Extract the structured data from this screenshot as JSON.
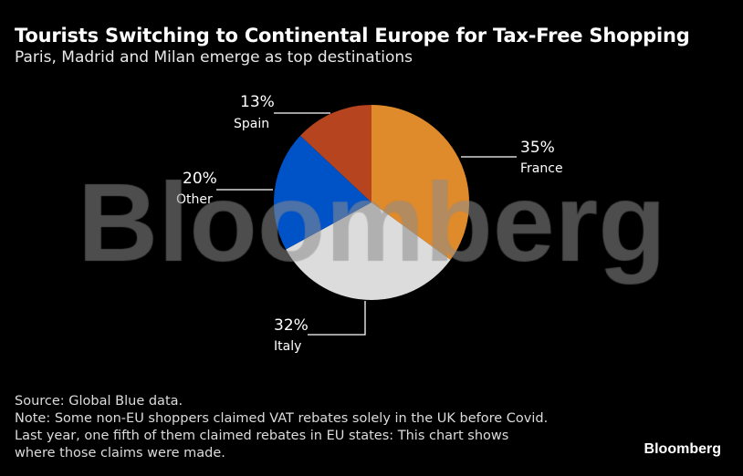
{
  "title": "Tourists Switching to Continental Europe for Tax-Free Shopping",
  "subtitle": "Paris, Madrid and Milan emerge as top destinations",
  "notes": {
    "source": "Source: Global Blue data.",
    "note1": "Note: Some non-EU shoppers claimed VAT rebates solely in the UK before Covid.",
    "note2": "Last year, one fifth of them claimed rebates in EU states: This chart shows",
    "note3": "where those claims were made."
  },
  "brand": "Bloomberg",
  "watermark": "Bloomberg",
  "chart_data": {
    "type": "pie",
    "start": "12 o'clock, clockwise",
    "slices": [
      {
        "label": "France",
        "value": 35,
        "value_label": "35%",
        "color": "#df8a2b"
      },
      {
        "label": "Italy",
        "value": 32,
        "value_label": "32%",
        "color": "#dcdcdc"
      },
      {
        "label": "Other",
        "value": 20,
        "value_label": "20%",
        "color": "#0052c7"
      },
      {
        "label": "Spain",
        "value": 13,
        "value_label": "13%",
        "color": "#b5441f"
      }
    ]
  }
}
